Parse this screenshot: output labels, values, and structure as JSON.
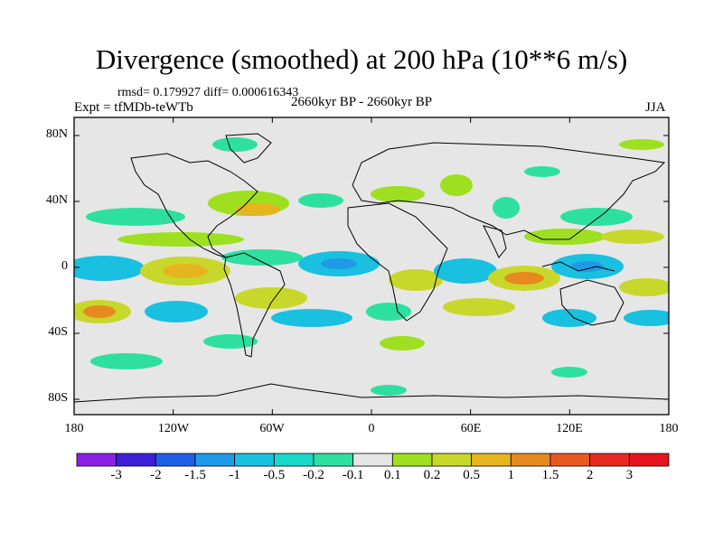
{
  "title": "Divergence (smoothed) at 200 hPa (10**6 m/s)",
  "stats": "rmsd= 0.179927  diff= 0.000616343",
  "experiment": "Expt = tfMDb-teWTb",
  "period": "2660kyr BP - 2660kyr BP",
  "season": "JJA",
  "y_axis_labels": [
    "80N",
    "40N",
    "0",
    "40S",
    "80S"
  ],
  "x_axis_labels": [
    "180",
    "120W",
    "60W",
    "0",
    "60E",
    "120E",
    "180"
  ],
  "colorbar": {
    "labels": [
      "-3",
      "-2",
      "-1.5",
      "-1",
      "-0.5",
      "-0.2",
      "-0.1",
      "0.1",
      "0.2",
      "0.5",
      "1",
      "1.5",
      "2",
      "3"
    ],
    "colors": [
      "#8a1fe6",
      "#3c1fd6",
      "#1f5fe6",
      "#1f9ae6",
      "#19c0e0",
      "#19d8c8",
      "#2ee0a0",
      "#e6e6e6",
      "#9ee01f",
      "#c8d82a",
      "#e6b41f",
      "#e68a1f",
      "#e65a1f",
      "#e62a1f",
      "#e6141f"
    ]
  },
  "chart_data": {
    "type": "heatmap",
    "title": "Divergence (smoothed) at 200 hPa (10**6 m/s)",
    "projection": "cylindrical equidistant",
    "lon_range": [
      -180,
      180
    ],
    "lat_range": [
      -90,
      90
    ],
    "levels": [
      -3,
      -2,
      -1.5,
      -1,
      -0.5,
      -0.2,
      -0.1,
      0.1,
      0.2,
      0.5,
      1,
      1.5,
      2,
      3
    ],
    "season": "JJA"
  }
}
